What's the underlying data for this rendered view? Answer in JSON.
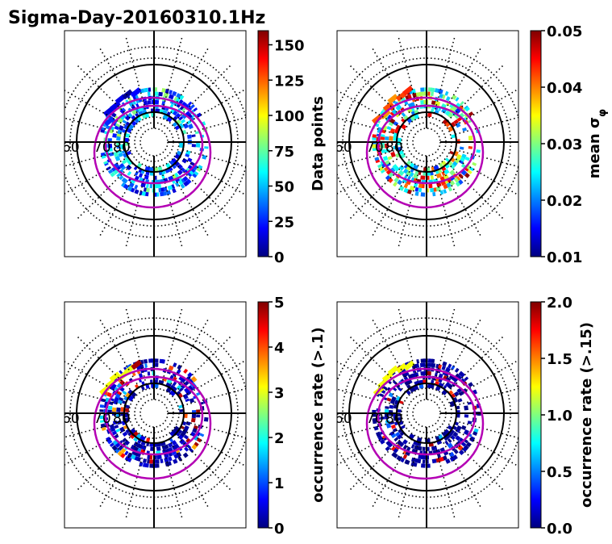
{
  "figure": {
    "title": "Sigma-Day-20160310.1Hz"
  },
  "chart_data": [
    {
      "type": "heatmap",
      "projection": "polar",
      "colormap": "jet",
      "lat_labels": [
        "60",
        "70",
        "80"
      ],
      "colorbar": {
        "label": "Data points",
        "range": [
          0,
          160
        ],
        "ticks": [
          "0",
          "25",
          "50",
          "75",
          "100",
          "125",
          "150"
        ],
        "tick_values": [
          0,
          25,
          50,
          75,
          100,
          125,
          150
        ]
      }
    },
    {
      "type": "heatmap",
      "projection": "polar",
      "colormap": "jet",
      "lat_labels": [
        "60",
        "70",
        "80"
      ],
      "colorbar": {
        "label": "mean σ",
        "label_subscript": "φ",
        "range": [
          0.01,
          0.05
        ],
        "ticks": [
          "0.01",
          "0.02",
          "0.03",
          "0.04",
          "0.05"
        ],
        "tick_values": [
          0.01,
          0.02,
          0.03,
          0.04,
          0.05
        ]
      }
    },
    {
      "type": "heatmap",
      "projection": "polar",
      "colormap": "jet",
      "lat_labels": [
        "60",
        "70",
        "80"
      ],
      "colorbar": {
        "label": "occurrence rate (>.1)",
        "range": [
          0,
          5
        ],
        "ticks": [
          "0",
          "1",
          "2",
          "3",
          "4",
          "5"
        ],
        "tick_values": [
          0,
          1,
          2,
          3,
          4,
          5
        ]
      }
    },
    {
      "type": "heatmap",
      "projection": "polar",
      "colormap": "jet",
      "lat_labels": [
        "60",
        "70",
        "80"
      ],
      "colorbar": {
        "label": "occurrence rate (>.15)",
        "range": [
          0,
          2
        ],
        "ticks": [
          "0.0",
          "0.5",
          "1.0",
          "1.5",
          "2.0"
        ],
        "tick_values": [
          0,
          0.5,
          1.0,
          1.5,
          2.0
        ]
      }
    }
  ],
  "colors": {
    "oval": "#b400b4",
    "grid": "#000000",
    "jet": [
      "#00007f",
      "#0000ff",
      "#007fff",
      "#00ffff",
      "#7fff7f",
      "#ffff00",
      "#ff7f00",
      "#ff0000",
      "#7f0000"
    ]
  }
}
